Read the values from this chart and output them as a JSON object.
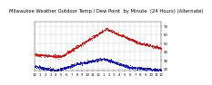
{
  "title": "Milwaukee Weather Outdoor Temp / Dew Point  by Minute  (24 Hours) (Alternate)",
  "bg_color": "#ffffff",
  "grid_color": "#aaaaaa",
  "temp_color": "#dd0000",
  "dew_color": "#0000cc",
  "ylim": [
    18,
    75
  ],
  "xlim": [
    0,
    1440
  ],
  "ytick_positions": [
    20,
    30,
    40,
    50,
    60,
    70
  ],
  "ytick_labels": [
    "20",
    "30",
    "40",
    "50",
    "60",
    "70"
  ],
  "xtick_positions": [
    0,
    60,
    120,
    180,
    240,
    300,
    360,
    420,
    480,
    540,
    600,
    660,
    720,
    780,
    840,
    900,
    960,
    1020,
    1080,
    1140,
    1200,
    1260,
    1320,
    1380,
    1440
  ],
  "xtick_labels": [
    "12",
    "1",
    "2",
    "3",
    "4",
    "5",
    "6",
    "7",
    "8",
    "9",
    "10",
    "11",
    "12",
    "1",
    "2",
    "3",
    "4",
    "5",
    "6",
    "7",
    "8",
    "9",
    "10",
    "11",
    "12"
  ],
  "title_fontsize": 3.8,
  "tick_fontsize": 2.8,
  "marker_size": 0.4
}
